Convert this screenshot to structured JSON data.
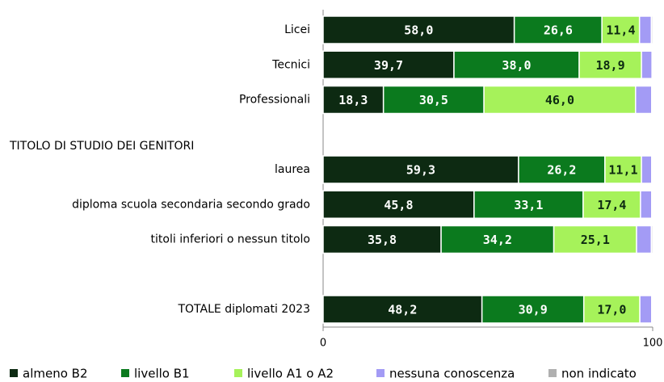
{
  "chart_data": {
    "type": "bar",
    "orientation": "horizontal",
    "stacked": true,
    "section_label": "TITOLO DI STUDIO DEI GENITORI",
    "categories": [
      "Licei",
      "Tecnici",
      "Professionali",
      null,
      "laurea",
      "diploma scuola secondaria secondo grado",
      "titoli inferiori o nessun titolo",
      null,
      "TOTALE diplomati 2023"
    ],
    "series": [
      {
        "name": "almeno B2",
        "color": "#0d2a12",
        "label_color": "#ffffff",
        "values": [
          58.0,
          39.7,
          18.3,
          null,
          59.3,
          45.8,
          35.8,
          null,
          48.2
        ],
        "value_labels": [
          "58,0",
          "39,7",
          "18,3",
          null,
          "59,3",
          "45,8",
          "35,8",
          null,
          "48,2"
        ]
      },
      {
        "name": "livello B1",
        "color": "#0b7a1e",
        "label_color": "#ffffff",
        "values": [
          26.6,
          38.0,
          30.5,
          null,
          26.2,
          33.1,
          34.2,
          null,
          30.9
        ],
        "value_labels": [
          "26,6",
          "38,0",
          "30,5",
          null,
          "26,2",
          "33,1",
          "34,2",
          null,
          "30,9"
        ]
      },
      {
        "name": "livello A1 o A2",
        "color": "#a6f25a",
        "label_color": "#0d2a12",
        "values": [
          11.4,
          18.9,
          46.0,
          null,
          11.1,
          17.4,
          25.1,
          null,
          17.0
        ],
        "value_labels": [
          "11,4",
          "18,9",
          "46,0",
          null,
          "11,1",
          "17,4",
          "25,1",
          null,
          "17,0"
        ]
      },
      {
        "name": "nessuna conoscenza",
        "color": "#a39bf5",
        "values": [
          3.6,
          3.2,
          4.9,
          null,
          3.1,
          3.4,
          4.5,
          null,
          3.6
        ]
      },
      {
        "name": "non indicato",
        "color": "#b0b0b0",
        "values": [
          0.4,
          0.2,
          0.3,
          null,
          0.3,
          0.3,
          0.4,
          null,
          0.3
        ]
      }
    ],
    "xlim": [
      0,
      100
    ],
    "xticks": [
      0,
      100
    ],
    "legend": "bottom"
  }
}
